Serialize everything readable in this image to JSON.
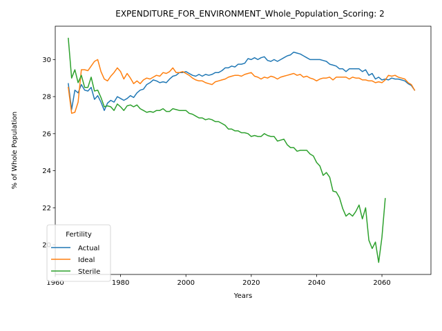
{
  "chart_data": {
    "type": "line",
    "title": "EXPENDITURE_FOR_ENVIRONMENT_Whole_Population_Scoring: 2",
    "xlabel": "Years",
    "ylabel": "% of Whole Population",
    "xlim": [
      1960,
      2075
    ],
    "ylim": [
      18.4,
      31.8
    ],
    "xticks": [
      1960,
      1980,
      2000,
      2020,
      2040,
      2060
    ],
    "yticks": [
      20,
      22,
      24,
      26,
      28,
      30
    ],
    "grid": false,
    "legend": {
      "title": "Fertility",
      "position": "lower-left"
    },
    "series": [
      {
        "name": "Actual",
        "color": "#1f77b4",
        "x": [
          1964,
          1965,
          1966,
          1967,
          1968,
          1969,
          1970,
          1971,
          1972,
          1973,
          1974,
          1975,
          1976,
          1977,
          1978,
          1979,
          1980,
          1981,
          1982,
          1983,
          1984,
          1985,
          1986,
          1987,
          1988,
          1989,
          1990,
          1991,
          1992,
          1993,
          1994,
          1995,
          1996,
          1997,
          1998,
          1999,
          2000,
          2001,
          2002,
          2003,
          2004,
          2005,
          2006,
          2007,
          2008,
          2009,
          2010,
          2011,
          2012,
          2013,
          2014,
          2015,
          2016,
          2017,
          2018,
          2019,
          2020,
          2021,
          2022,
          2023,
          2024,
          2025,
          2026,
          2027,
          2028,
          2029,
          2030,
          2031,
          2032,
          2033,
          2034,
          2035,
          2036,
          2037,
          2038,
          2039,
          2040,
          2041,
          2042,
          2043,
          2044,
          2045,
          2046,
          2047,
          2048,
          2049,
          2050,
          2051,
          2052,
          2053,
          2054,
          2055,
          2056,
          2057,
          2058,
          2059,
          2060,
          2061,
          2062,
          2063,
          2064,
          2065,
          2066,
          2067,
          2068,
          2069,
          2070
        ],
        "values": [
          28.7,
          27.3,
          28.35,
          28.2,
          28.65,
          28.35,
          28.3,
          28.5,
          27.85,
          28.05,
          27.7,
          27.25,
          27.65,
          27.8,
          27.7,
          28.0,
          27.9,
          27.8,
          27.9,
          28.05,
          27.95,
          28.2,
          28.35,
          28.4,
          28.65,
          28.75,
          28.9,
          28.85,
          28.75,
          28.8,
          28.75,
          28.95,
          29.1,
          29.15,
          29.3,
          29.3,
          29.35,
          29.25,
          29.15,
          29.1,
          29.2,
          29.1,
          29.2,
          29.15,
          29.2,
          29.3,
          29.3,
          29.4,
          29.55,
          29.55,
          29.65,
          29.6,
          29.75,
          29.75,
          29.8,
          30.05,
          30.0,
          30.1,
          30.0,
          30.1,
          30.15,
          29.95,
          29.9,
          30.0,
          29.9,
          30.0,
          30.1,
          30.2,
          30.25,
          30.4,
          30.35,
          30.3,
          30.2,
          30.1,
          30.0,
          30.0,
          30.0,
          30.0,
          29.95,
          29.9,
          29.75,
          29.7,
          29.65,
          29.5,
          29.5,
          29.35,
          29.5,
          29.5,
          29.5,
          29.5,
          29.35,
          29.45,
          29.15,
          29.25,
          28.95,
          29.05,
          28.9,
          28.95,
          28.9,
          29.0,
          28.95,
          28.95,
          28.9,
          28.85,
          28.7,
          28.6,
          28.35
        ]
      },
      {
        "name": "Ideal",
        "color": "#ff7f0e",
        "x": [
          1964,
          1965,
          1966,
          1967,
          1968,
          1969,
          1970,
          1971,
          1972,
          1973,
          1974,
          1975,
          1976,
          1977,
          1978,
          1979,
          1980,
          1981,
          1982,
          1983,
          1984,
          1985,
          1986,
          1987,
          1988,
          1989,
          1990,
          1991,
          1992,
          1993,
          1994,
          1995,
          1996,
          1997,
          1998,
          1999,
          2000,
          2001,
          2002,
          2003,
          2004,
          2005,
          2006,
          2007,
          2008,
          2009,
          2010,
          2011,
          2012,
          2013,
          2014,
          2015,
          2016,
          2017,
          2018,
          2019,
          2020,
          2021,
          2022,
          2023,
          2024,
          2025,
          2026,
          2027,
          2028,
          2029,
          2030,
          2031,
          2032,
          2033,
          2034,
          2035,
          2036,
          2037,
          2038,
          2039,
          2040,
          2041,
          2042,
          2043,
          2044,
          2045,
          2046,
          2047,
          2048,
          2049,
          2050,
          2051,
          2052,
          2053,
          2054,
          2055,
          2056,
          2057,
          2058,
          2059,
          2060,
          2061,
          2062,
          2063,
          2064,
          2065,
          2066,
          2067,
          2068,
          2069,
          2070
        ],
        "values": [
          28.5,
          27.1,
          27.15,
          27.7,
          29.45,
          29.45,
          29.4,
          29.65,
          29.9,
          30.0,
          29.35,
          28.95,
          28.85,
          29.1,
          29.3,
          29.55,
          29.35,
          28.95,
          29.25,
          29.0,
          28.7,
          28.85,
          28.7,
          28.9,
          29.0,
          28.95,
          29.05,
          29.15,
          29.1,
          29.3,
          29.25,
          29.35,
          29.55,
          29.3,
          29.3,
          29.35,
          29.25,
          29.15,
          29.0,
          28.9,
          28.85,
          28.85,
          28.75,
          28.7,
          28.65,
          28.8,
          28.85,
          28.9,
          28.95,
          29.05,
          29.1,
          29.15,
          29.15,
          29.1,
          29.2,
          29.25,
          29.3,
          29.1,
          29.05,
          28.95,
          29.05,
          29.0,
          29.1,
          29.05,
          28.95,
          29.05,
          29.1,
          29.15,
          29.2,
          29.25,
          29.15,
          29.2,
          29.05,
          29.1,
          29.0,
          28.95,
          28.85,
          28.95,
          29.0,
          29.0,
          29.05,
          28.9,
          29.05,
          29.05,
          29.05,
          29.05,
          28.95,
          29.05,
          29.0,
          29.0,
          28.9,
          28.9,
          28.85,
          28.85,
          28.75,
          28.8,
          28.75,
          28.9,
          29.15,
          29.1,
          29.15,
          29.05,
          29.0,
          28.95,
          28.75,
          28.65,
          28.35
        ]
      },
      {
        "name": "Sterile",
        "color": "#2ca02c",
        "x": [
          1964,
          1965,
          1966,
          1967,
          1968,
          1969,
          1970,
          1971,
          1972,
          1973,
          1974,
          1975,
          1976,
          1977,
          1978,
          1979,
          1980,
          1981,
          1982,
          1983,
          1984,
          1985,
          1986,
          1987,
          1988,
          1989,
          1990,
          1991,
          1992,
          1993,
          1994,
          1995,
          1996,
          1997,
          1998,
          1999,
          2000,
          2001,
          2002,
          2003,
          2004,
          2005,
          2006,
          2007,
          2008,
          2009,
          2010,
          2011,
          2012,
          2013,
          2014,
          2015,
          2016,
          2017,
          2018,
          2019,
          2020,
          2021,
          2022,
          2023,
          2024,
          2025,
          2026,
          2027,
          2028,
          2029,
          2030,
          2031,
          2032,
          2033,
          2034,
          2035,
          2036,
          2037,
          2038,
          2039,
          2040,
          2041,
          2042,
          2043,
          2044,
          2045,
          2046,
          2047,
          2048,
          2049,
          2050,
          2051,
          2052,
          2053,
          2054,
          2055,
          2056,
          2057,
          2058,
          2059,
          2060,
          2061
        ],
        "values": [
          31.15,
          29.0,
          29.45,
          28.75,
          29.15,
          28.5,
          28.5,
          29.05,
          28.3,
          28.35,
          27.95,
          27.45,
          27.5,
          27.45,
          27.25,
          27.6,
          27.45,
          27.25,
          27.5,
          27.55,
          27.45,
          27.55,
          27.35,
          27.25,
          27.15,
          27.2,
          27.15,
          27.25,
          27.25,
          27.35,
          27.2,
          27.2,
          27.35,
          27.3,
          27.25,
          27.25,
          27.25,
          27.1,
          27.05,
          26.95,
          26.85,
          26.85,
          26.75,
          26.8,
          26.75,
          26.65,
          26.65,
          26.55,
          26.45,
          26.25,
          26.25,
          26.15,
          26.15,
          26.05,
          26.05,
          26.0,
          25.85,
          25.9,
          25.85,
          25.85,
          26.0,
          25.9,
          25.85,
          25.85,
          25.6,
          25.65,
          25.7,
          25.4,
          25.25,
          25.25,
          25.05,
          25.1,
          25.1,
          25.1,
          24.9,
          24.8,
          24.45,
          24.25,
          23.75,
          23.9,
          23.65,
          22.9,
          22.85,
          22.55,
          21.95,
          21.55,
          21.7,
          21.55,
          21.8,
          22.15,
          21.4,
          22.0,
          20.25,
          19.8,
          20.15,
          19.05,
          20.4,
          22.5
        ]
      }
    ]
  }
}
